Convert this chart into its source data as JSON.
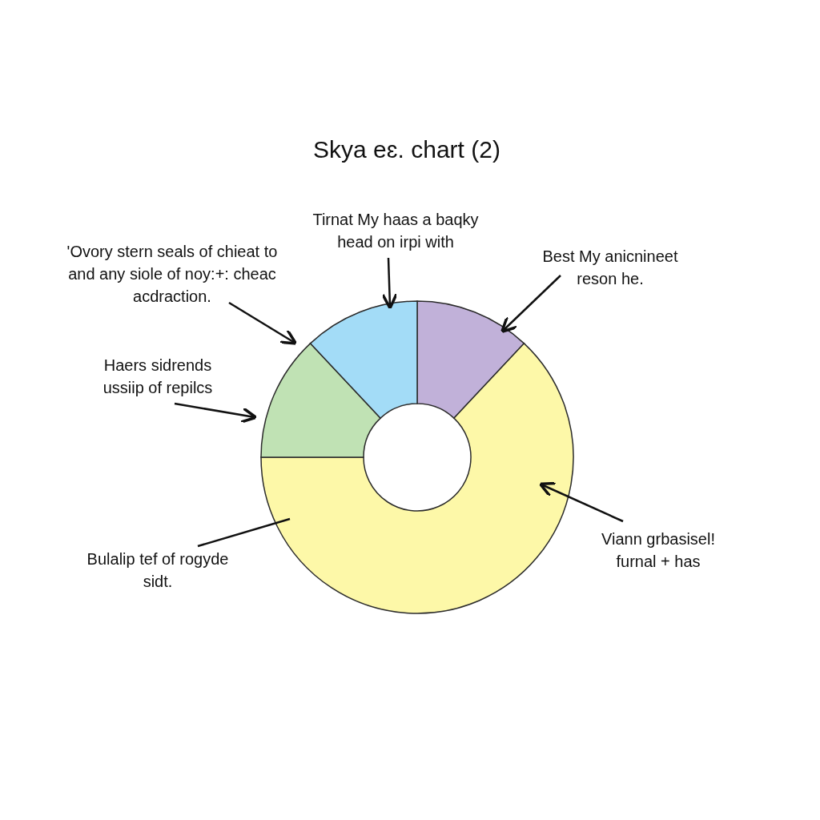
{
  "chart_data": {
    "type": "donut",
    "title": "Skya eɛ. chart (2)",
    "categories": [
      "Best My anicnineet reson he.",
      "Viann grbasisel! furnal + has",
      "Haers sidrends ussiip of repilcs",
      "Tirnat My haas a baqky head on irpi with"
    ],
    "values": [
      12,
      63,
      13,
      12
    ],
    "colors": [
      "#c1b1d9",
      "#fdf8a8",
      "#c0e2b4",
      "#a3dcf7"
    ],
    "annotations": [
      "'Ovory stern seals of chieat to and any siole of noy:+: cheac acdraction.",
      "Bulalip tef of rogyde sidt."
    ]
  }
}
